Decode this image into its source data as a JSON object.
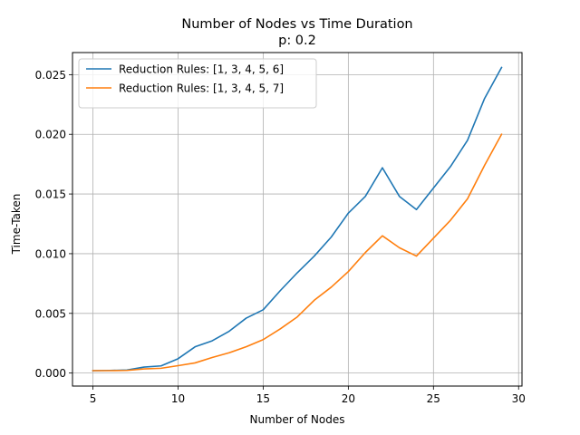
{
  "chart_data": {
    "type": "line",
    "title": "Number of Nodes vs Time Duration",
    "subtitle": "p: 0.2",
    "xlabel": "Number of Nodes",
    "ylabel": "Time-Taken",
    "xlim": [
      3.8,
      30.2
    ],
    "ylim": [
      -0.00109,
      0.02685
    ],
    "xticks": [
      5,
      10,
      15,
      20,
      25,
      30
    ],
    "xtick_labels": [
      "5",
      "10",
      "15",
      "20",
      "25",
      "30"
    ],
    "yticks": [
      0.0,
      0.005,
      0.01,
      0.015,
      0.02,
      0.025
    ],
    "ytick_labels": [
      "0.000",
      "0.005",
      "0.010",
      "0.015",
      "0.020",
      "0.025"
    ],
    "grid": true,
    "legend_position": "top-left",
    "x": [
      5,
      6,
      7,
      8,
      9,
      10,
      11,
      12,
      13,
      14,
      15,
      16,
      17,
      18,
      19,
      20,
      21,
      22,
      23,
      24,
      25,
      26,
      27,
      28,
      29
    ],
    "series": [
      {
        "name": "Reduction Rules: [1, 3, 4, 5, 6]",
        "color": "#1f77b4",
        "values": [
          0.0002,
          0.00022,
          0.00025,
          0.0005,
          0.0006,
          0.0012,
          0.0022,
          0.0027,
          0.0035,
          0.0046,
          0.0053,
          0.0069,
          0.0084,
          0.0098,
          0.0114,
          0.0134,
          0.0148,
          0.0172,
          0.0148,
          0.0137,
          0.0155,
          0.0173,
          0.0195,
          0.023,
          0.0256
        ]
      },
      {
        "name": "Reduction Rules: [1, 3, 4, 5, 7]",
        "color": "#ff7f0e",
        "values": [
          0.0002,
          0.0002,
          0.00022,
          0.00035,
          0.0004,
          0.00062,
          0.00085,
          0.0013,
          0.0017,
          0.0022,
          0.0028,
          0.0037,
          0.0047,
          0.0061,
          0.0072,
          0.0085,
          0.0101,
          0.0115,
          0.0105,
          0.0098,
          0.0113,
          0.0128,
          0.0146,
          0.0174,
          0.02
        ]
      }
    ]
  }
}
